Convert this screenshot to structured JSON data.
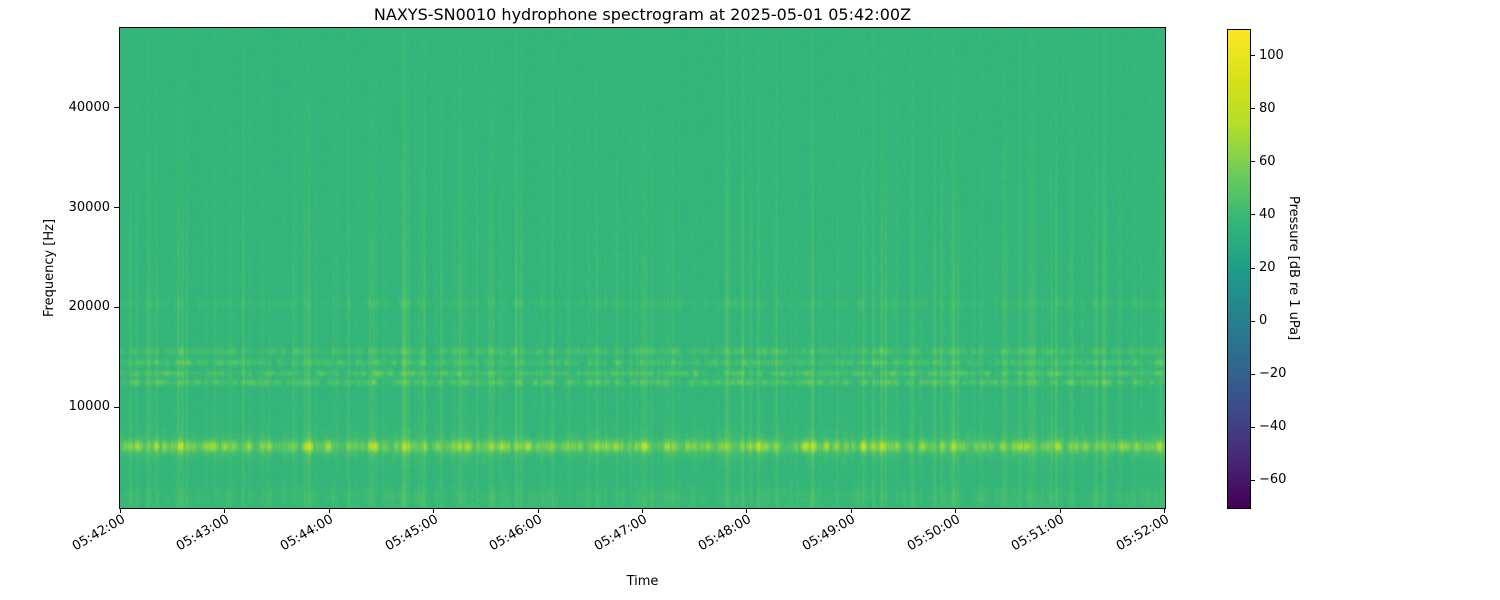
{
  "chart_data": {
    "type": "heatmap",
    "title": "NAXYS-SN0010 hydrophone spectrogram at 2025-05-01 05:42:00Z",
    "xlabel": "Time",
    "ylabel": "Frequency [Hz]",
    "x_tick_labels": [
      "05:42:00",
      "05:43:00",
      "05:44:00",
      "05:45:00",
      "05:46:00",
      "05:47:00",
      "05:48:00",
      "05:49:00",
      "05:50:00",
      "05:51:00",
      "05:52:00"
    ],
    "x_range": [
      "05:42:00",
      "05:52:00"
    ],
    "y_tick_values": [
      10000,
      20000,
      30000,
      40000
    ],
    "ylim": [
      0,
      48000
    ],
    "grid": false,
    "colormap": "viridis",
    "colorbar": {
      "label": "Pressure [dB re 1 uPa]",
      "ticks": [
        100,
        80,
        60,
        40,
        20,
        0,
        -20,
        -40,
        -60
      ],
      "clim": [
        -70,
        110
      ]
    },
    "spectrogram_model": {
      "description": "Broadband green background ~35-40 dB with dense vertical transient streaks, a strong intermittent tonal band near 6 kHz reaching ~100 dB, several speckled tonal lines between 12-16 kHz, faint lines near 20 kHz, and mottled low-frequency energy below 2 kHz.",
      "background_db": 36,
      "noise_db": 2.6,
      "seed": 42,
      "horizontal_bands": [
        {
          "center_hz": 6200,
          "sigma_hz": 380,
          "peak_db": 60,
          "duty": 0.5
        },
        {
          "center_hz": 6200,
          "sigma_hz": 1200,
          "peak_db": 10,
          "duty": 0.9
        },
        {
          "center_hz": 12600,
          "sigma_hz": 230,
          "peak_db": 26,
          "duty": 0.65
        },
        {
          "center_hz": 13500,
          "sigma_hz": 210,
          "peak_db": 24,
          "duty": 0.65
        },
        {
          "center_hz": 14600,
          "sigma_hz": 230,
          "peak_db": 22,
          "duty": 0.6
        },
        {
          "center_hz": 15700,
          "sigma_hz": 260,
          "peak_db": 20,
          "duty": 0.6
        },
        {
          "center_hz": 20500,
          "sigma_hz": 300,
          "peak_db": 10,
          "duty": 0.5
        },
        {
          "center_hz": 1100,
          "sigma_hz": 800,
          "peak_db": 9,
          "duty": 0.9
        }
      ],
      "vertical_streaks": {
        "probability": 0.07,
        "max_db": 20,
        "center_hz": 15000,
        "sigma_hz": 13000
      }
    }
  }
}
